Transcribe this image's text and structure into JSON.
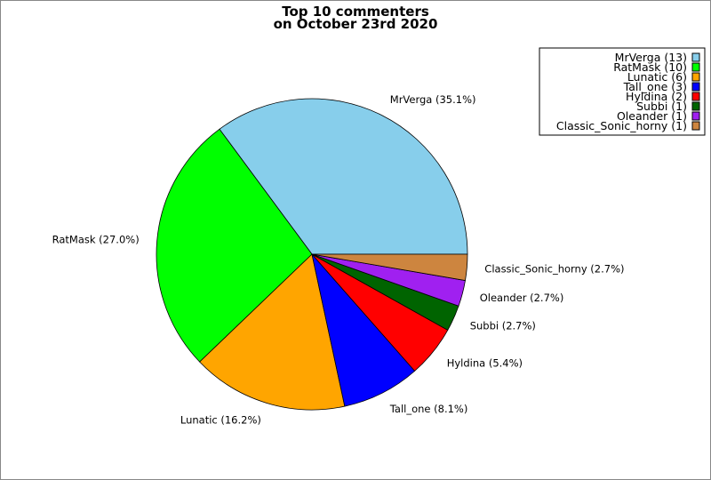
{
  "chart_data": {
    "type": "pie",
    "title": [
      "Top 10 commenters",
      "on October 23rd 2020"
    ],
    "slices": [
      {
        "label": "MrVerga",
        "value": 13,
        "percent": "35.1%",
        "color": "#87ceeb"
      },
      {
        "label": "RatMask",
        "value": 10,
        "percent": "27.0%",
        "color": "#00ff00"
      },
      {
        "label": "Lunatic",
        "value": 6,
        "percent": "16.2%",
        "color": "#ffa500"
      },
      {
        "label": "Tall_one",
        "value": 3,
        "percent": "8.1%",
        "color": "#0000ff"
      },
      {
        "label": "Hyldina",
        "value": 2,
        "percent": "5.4%",
        "color": "#ff0000"
      },
      {
        "label": "Subbi",
        "value": 1,
        "percent": "2.7%",
        "color": "#006400"
      },
      {
        "label": "Oleander",
        "value": 1,
        "percent": "2.7%",
        "color": "#a020f0"
      },
      {
        "label": "Classic_Sonic_horny",
        "value": 1,
        "percent": "2.7%",
        "color": "#cd853f"
      }
    ],
    "start_angle": "east, counterclockwise",
    "legend": "top-right"
  }
}
